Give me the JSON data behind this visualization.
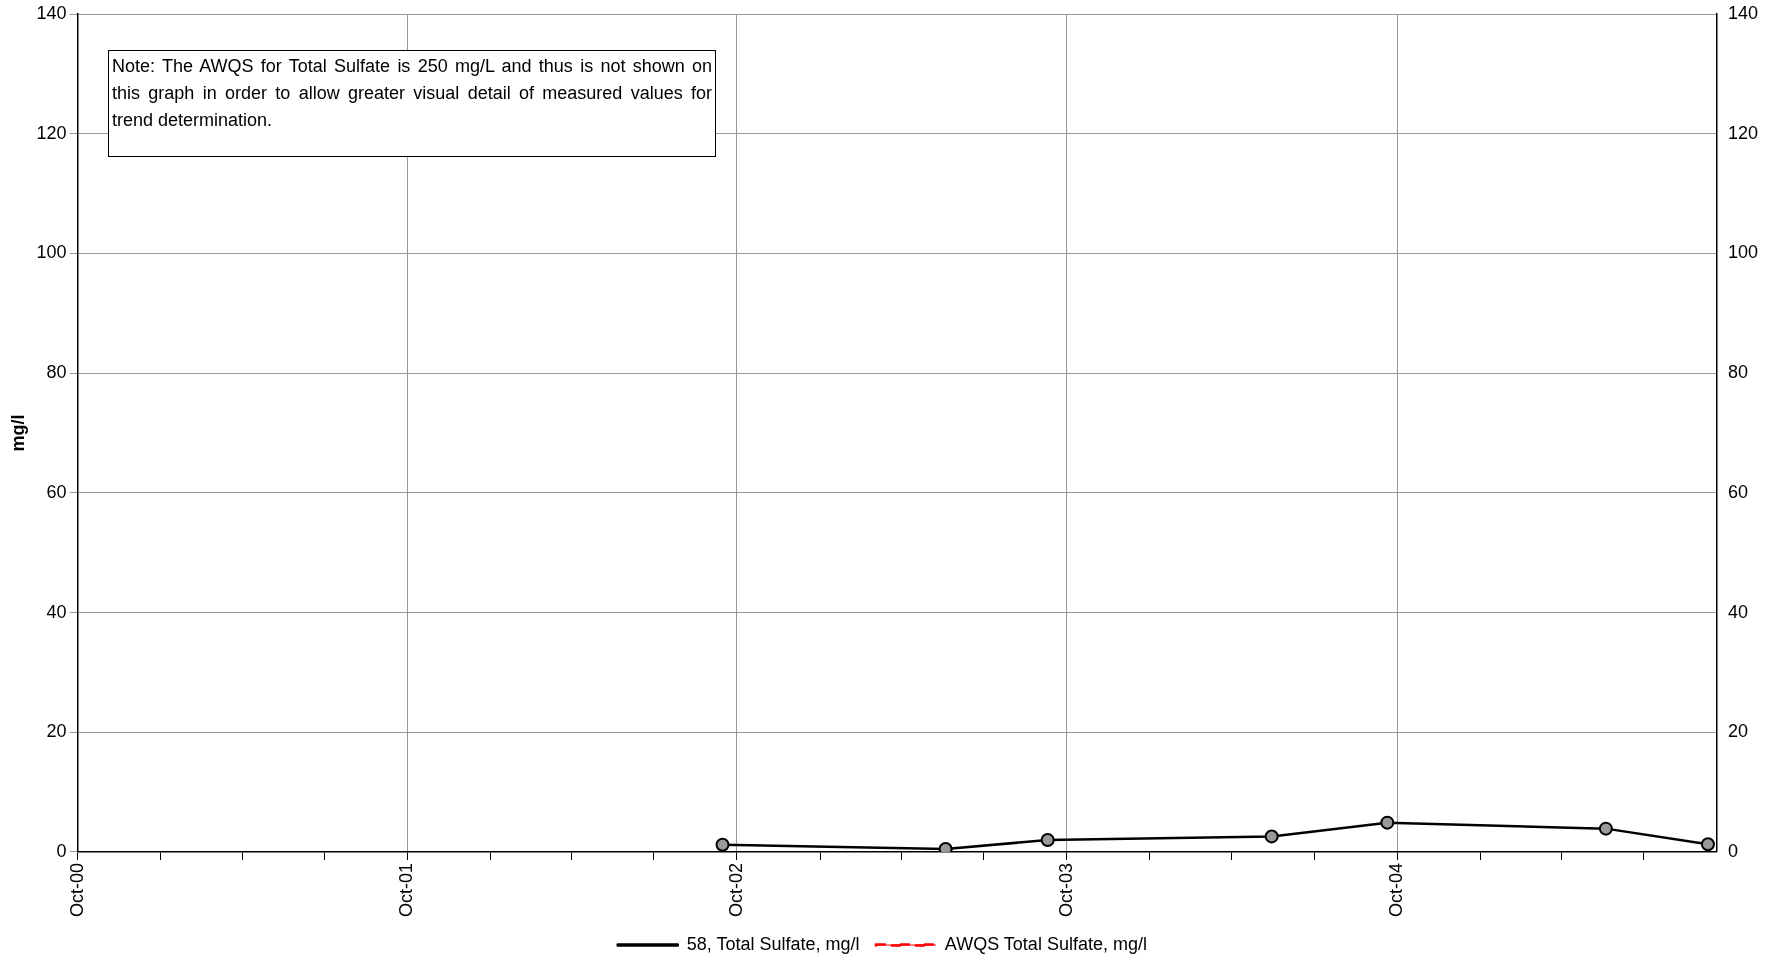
{
  "chart_data": {
    "type": "line",
    "ylabel": "mg/l",
    "annotations": [
      "Note: The AWQS for Total Sulfate is 250 mg/L and thus is not shown on this graph in order to allow greater visual detail of measured values for trend determination."
    ],
    "x": [
      "2002-09-15",
      "2003-05-20",
      "2003-09-10",
      "2004-05-15",
      "2004-09-20",
      "2005-05-20",
      "2005-09-10"
    ],
    "series": [
      {
        "name": "58, Total Sulfate, mg/l",
        "color": "#000000",
        "values": [
          1.2,
          0.5,
          2.0,
          2.6,
          4.9,
          3.9,
          1.3
        ],
        "marker": "circle",
        "line_style": "solid"
      },
      {
        "name": "AWQS Total Sulfate, mg/l",
        "color": "#ff0000",
        "values": [
          null,
          null,
          null,
          null,
          null,
          null,
          null
        ],
        "marker": "none",
        "line_style": "dashed"
      }
    ],
    "xlim": [
      "2000-10-01",
      "2005-09-20"
    ],
    "xticks": [
      {
        "value": "2000-10-01",
        "label": "Oct-00"
      },
      {
        "value": "2001-01-01",
        "label": null
      },
      {
        "value": "2001-04-01",
        "label": null
      },
      {
        "value": "2001-07-01",
        "label": null
      },
      {
        "value": "2001-10-01",
        "label": "Oct-01"
      },
      {
        "value": "2002-01-01",
        "label": null
      },
      {
        "value": "2002-04-01",
        "label": null
      },
      {
        "value": "2002-07-01",
        "label": null
      },
      {
        "value": "2002-10-01",
        "label": "Oct-02"
      },
      {
        "value": "2003-01-01",
        "label": null
      },
      {
        "value": "2003-04-01",
        "label": null
      },
      {
        "value": "2003-07-01",
        "label": null
      },
      {
        "value": "2003-10-01",
        "label": "Oct-03"
      },
      {
        "value": "2004-01-01",
        "label": null
      },
      {
        "value": "2004-04-01",
        "label": null
      },
      {
        "value": "2004-07-01",
        "label": null
      },
      {
        "value": "2004-10-01",
        "label": "Oct-04"
      },
      {
        "value": "2005-01-01",
        "label": null
      },
      {
        "value": "2005-04-01",
        "label": null
      },
      {
        "value": "2005-07-01",
        "label": null
      }
    ],
    "ylim": [
      0,
      140
    ],
    "yticks": [
      0,
      20,
      40,
      60,
      80,
      100,
      120,
      140
    ],
    "y2lim": [
      0,
      140
    ],
    "y2ticks": [
      0,
      20,
      40,
      60,
      80,
      100,
      120,
      140
    ],
    "grid": true,
    "legend": "bottom"
  }
}
